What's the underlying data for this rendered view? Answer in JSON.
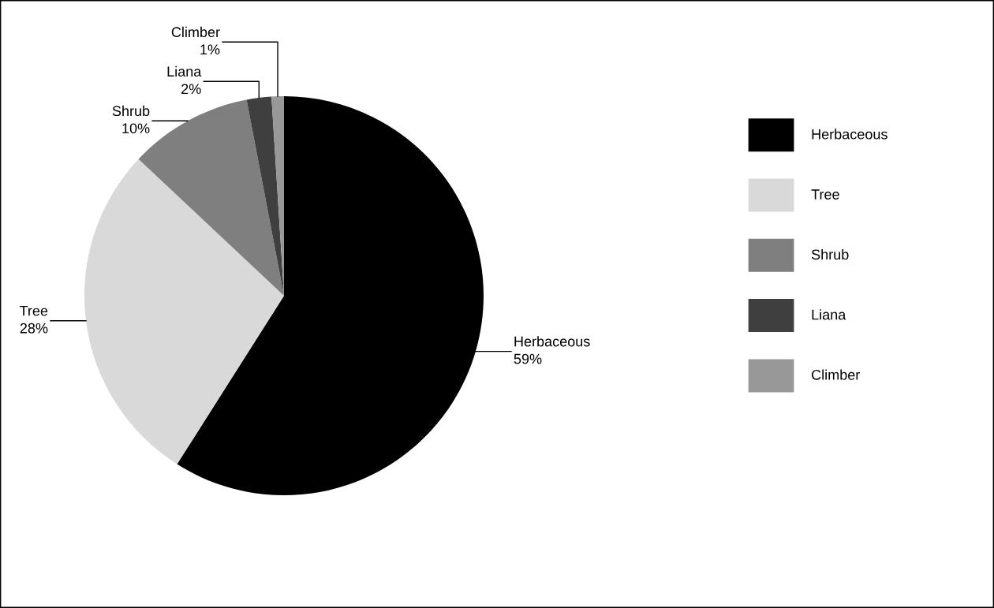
{
  "chart_data": {
    "type": "pie",
    "categories": [
      "Herbaceous",
      "Tree",
      "Shrub",
      "Liana",
      "Climber"
    ],
    "values": [
      59,
      28,
      10,
      2,
      1
    ],
    "value_labels": [
      "59%",
      "28%",
      "10%",
      "2%",
      "1%"
    ],
    "colors": [
      "#000000",
      "#d9d9d9",
      "#7f7f7f",
      "#3f3f3f",
      "#989898"
    ],
    "legend": "right"
  }
}
